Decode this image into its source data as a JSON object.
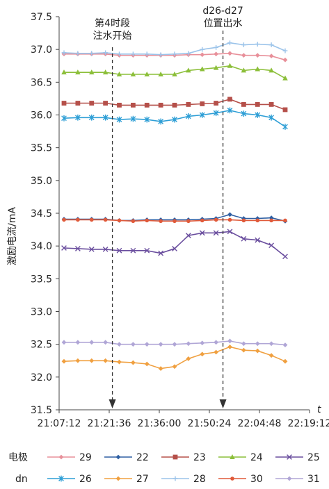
{
  "chart_data": {
    "type": "line",
    "ylabel": "激励电流/mA",
    "xlabel": "t",
    "ylim": [
      31.5,
      37.5
    ],
    "y_ticks": [
      "31.5",
      "32.0",
      "32.5",
      "33.0",
      "33.5",
      "34.0",
      "34.5",
      "35.0",
      "35.5",
      "36.0",
      "36.5",
      "37.0",
      "37.5"
    ],
    "x_tick_labels": [
      "21:07:12",
      "21:21:36",
      "21:36:00",
      "21:50:24",
      "22:04:48",
      "22:19:12"
    ],
    "annotations": [
      {
        "text_line1": "第4时段",
        "text_line2": "注水开始",
        "x_index": 3.5
      },
      {
        "text_line1": "d26-d27",
        "text_line2": "位置出水",
        "x_index": 11.5
      }
    ],
    "legend_row_labels": [
      "电极",
      "dn"
    ],
    "x_count": 17,
    "series": [
      {
        "name": "29",
        "color": "#e8909a",
        "marker": "diamond",
        "values": [
          36.93,
          36.93,
          36.93,
          36.93,
          36.91,
          36.91,
          36.91,
          36.91,
          36.91,
          36.92,
          36.92,
          36.93,
          36.94,
          36.91,
          36.91,
          36.9,
          36.84
        ]
      },
      {
        "name": "22",
        "color": "#2e5fa3",
        "marker": "diamond",
        "values": [
          34.41,
          34.41,
          34.41,
          34.41,
          34.39,
          34.39,
          34.4,
          34.4,
          34.4,
          34.4,
          34.41,
          34.42,
          34.48,
          34.42,
          34.42,
          34.43,
          34.38
        ]
      },
      {
        "name": "23",
        "color": "#b5504a",
        "marker": "square",
        "values": [
          36.18,
          36.18,
          36.18,
          36.18,
          36.15,
          36.15,
          36.15,
          36.15,
          36.15,
          36.16,
          36.17,
          36.18,
          36.24,
          36.16,
          36.16,
          36.16,
          36.08
        ]
      },
      {
        "name": "24",
        "color": "#8cbf3a",
        "marker": "triangle",
        "values": [
          36.65,
          36.65,
          36.65,
          36.65,
          36.62,
          36.62,
          36.62,
          36.62,
          36.62,
          36.68,
          36.7,
          36.72,
          36.75,
          36.68,
          36.7,
          36.68,
          36.56
        ]
      },
      {
        "name": "25",
        "color": "#6a4e9e",
        "marker": "x",
        "values": [
          33.97,
          33.96,
          33.95,
          33.95,
          33.93,
          33.93,
          33.93,
          33.89,
          33.96,
          34.16,
          34.2,
          34.2,
          34.22,
          34.11,
          34.09,
          34.01,
          33.84
        ]
      },
      {
        "name": "26",
        "color": "#2f9fd6",
        "marker": "star",
        "values": [
          35.95,
          35.96,
          35.96,
          35.96,
          35.93,
          35.94,
          35.93,
          35.9,
          35.93,
          35.98,
          36.0,
          36.03,
          36.07,
          36.02,
          36.0,
          35.96,
          35.82
        ]
      },
      {
        "name": "27",
        "color": "#f0a040",
        "marker": "diamond",
        "values": [
          32.24,
          32.25,
          32.25,
          32.25,
          32.23,
          32.22,
          32.2,
          32.13,
          32.16,
          32.28,
          32.35,
          32.38,
          32.46,
          32.41,
          32.4,
          32.33,
          32.24
        ]
      },
      {
        "name": "28",
        "color": "#9cc4ea",
        "marker": "plus",
        "values": [
          36.95,
          36.94,
          36.94,
          36.95,
          36.93,
          36.93,
          36.93,
          36.92,
          36.93,
          36.94,
          37.0,
          37.03,
          37.1,
          37.07,
          37.08,
          37.07,
          36.98
        ]
      },
      {
        "name": "30",
        "color": "#e05a3a",
        "marker": "dot",
        "values": [
          34.4,
          34.4,
          34.4,
          34.4,
          34.39,
          34.38,
          34.39,
          34.38,
          34.38,
          34.38,
          34.39,
          34.4,
          34.4,
          34.39,
          34.39,
          34.39,
          34.39
        ]
      },
      {
        "name": "31",
        "color": "#b0a6d6",
        "marker": "diamond",
        "values": [
          32.53,
          32.53,
          32.53,
          32.53,
          32.5,
          32.5,
          32.5,
          32.5,
          32.5,
          32.51,
          32.52,
          32.53,
          32.55,
          32.51,
          32.51,
          32.51,
          32.49
        ]
      }
    ],
    "grid": false,
    "legend_position": "bottom"
  }
}
